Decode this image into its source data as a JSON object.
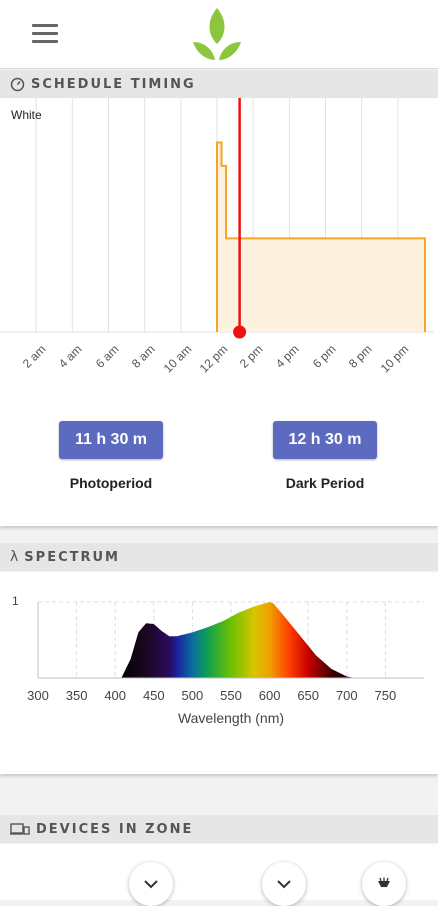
{
  "header": {
    "menu_icon": "hamburger-menu-icon",
    "logo_icon": "leaf-logo-icon"
  },
  "schedule": {
    "section_title": "SCHEDULE TIMING",
    "icon": "clock-icon",
    "channel_label": "White",
    "photoperiod": {
      "value": "11 h 30 m",
      "label": "Photoperiod"
    },
    "dark_period": {
      "value": "12 h 30 m",
      "label": "Dark Period"
    },
    "chart_data": {
      "type": "line",
      "x_unit": "hour of day",
      "xlim": [
        0,
        24
      ],
      "ylim": [
        0,
        1
      ],
      "tick_labels": [
        "2 am",
        "4 am",
        "6 am",
        "8 am",
        "10 am",
        "12 pm",
        "2 pm",
        "4 pm",
        "6 pm",
        "8 pm",
        "10 pm"
      ],
      "tick_hours": [
        2,
        4,
        6,
        8,
        10,
        12,
        14,
        16,
        18,
        20,
        22
      ],
      "series": [
        {
          "x": [
            12.0,
            12.0,
            12.25,
            12.25,
            12.5,
            12.5,
            23.5,
            23.5
          ],
          "y": [
            0,
            0.81,
            0.81,
            0.71,
            0.71,
            0.4,
            0.4,
            0
          ]
        }
      ],
      "current_time_hour": 13.25,
      "colors": {
        "line": "#f5a623",
        "fill": "#fdf1e0",
        "now": "#ee1111",
        "grid": "#e1e1ea"
      }
    }
  },
  "spectrum": {
    "section_title": "SPECTRUM",
    "icon": "lambda-icon",
    "y_tick": "1",
    "x_label": "Wavelength (nm)",
    "chart_data": {
      "type": "area",
      "x_tick_labels": [
        "300",
        "350",
        "400",
        "450",
        "500",
        "550",
        "600",
        "650",
        "700",
        "750"
      ],
      "xlim": [
        300,
        800
      ],
      "ylim": [
        0,
        1
      ],
      "x": [
        408,
        420,
        430,
        440,
        450,
        460,
        470,
        480,
        500,
        520,
        540,
        560,
        580,
        590,
        600,
        605,
        620,
        640,
        660,
        680,
        700,
        710
      ],
      "y": [
        0,
        0.25,
        0.6,
        0.72,
        0.71,
        0.62,
        0.55,
        0.55,
        0.6,
        0.67,
        0.75,
        0.86,
        0.94,
        0.97,
        1.0,
        0.98,
        0.8,
        0.55,
        0.3,
        0.12,
        0.02,
        0
      ]
    }
  },
  "devices": {
    "section_title": "DEVICES IN ZONE",
    "icon": "devices-icon"
  }
}
